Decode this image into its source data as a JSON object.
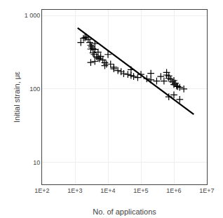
{
  "chart_data": {
    "type": "scatter",
    "xlabel": "No. of applications",
    "ylabel": "Initial strain, με",
    "log": true,
    "grid": true,
    "xlim": [
      100,
      10000000
    ],
    "ylim": [
      5,
      1200
    ],
    "xticks": [
      {
        "value": 100,
        "label": "1E+2"
      },
      {
        "value": 1000,
        "label": "1E+3"
      },
      {
        "value": 10000,
        "label": "1E+4"
      },
      {
        "value": 100000,
        "label": "1E+5"
      },
      {
        "value": 1000000,
        "label": "1E+6"
      },
      {
        "value": 10000000,
        "label": "1E+7"
      }
    ],
    "yticks": [
      10,
      100,
      {
        "value": 1000,
        "label": "1 000"
      }
    ],
    "series": [
      {
        "type": "scatter",
        "marker": "cross",
        "color": "#000000",
        "x": [
          1500,
          1800,
          2000,
          2200,
          2500,
          2800,
          3000,
          3000,
          3200,
          3500,
          3500,
          3800,
          4000,
          4000,
          4500,
          5000,
          5000,
          5500,
          6000,
          7000,
          8000,
          8000,
          9000,
          10000,
          12000,
          15000,
          15000,
          20000,
          25000,
          30000,
          40000,
          50000,
          60000,
          80000,
          100000,
          150000,
          200000,
          300000,
          400000,
          500000,
          600000,
          700000,
          700000,
          800000,
          900000,
          1000000,
          1000000,
          1100000,
          1200000,
          1300000,
          1500000,
          2000000,
          3000,
          4000,
          50000,
          200000,
          600000,
          700000,
          1000000,
          1500000
        ],
        "values": [
          430,
          490,
          500,
          510,
          475,
          430,
          395,
          350,
          375,
          355,
          310,
          295,
          415,
          345,
          275,
          318,
          265,
          258,
          278,
          248,
          228,
          208,
          218,
          295,
          218,
          198,
          188,
          178,
          172,
          162,
          158,
          153,
          148,
          143,
          158,
          138,
          133,
          128,
          148,
          128,
          155,
          150,
          140,
          135,
          125,
          130,
          115,
          120,
          110,
          108,
          105,
          100,
          230,
          238,
          183,
          163,
          168,
          78,
          83,
          72
        ]
      },
      {
        "type": "line",
        "line_style": "solid",
        "color": "#000000",
        "x": [
          1200,
          4000000
        ],
        "values": [
          680,
          45
        ]
      }
    ]
  }
}
